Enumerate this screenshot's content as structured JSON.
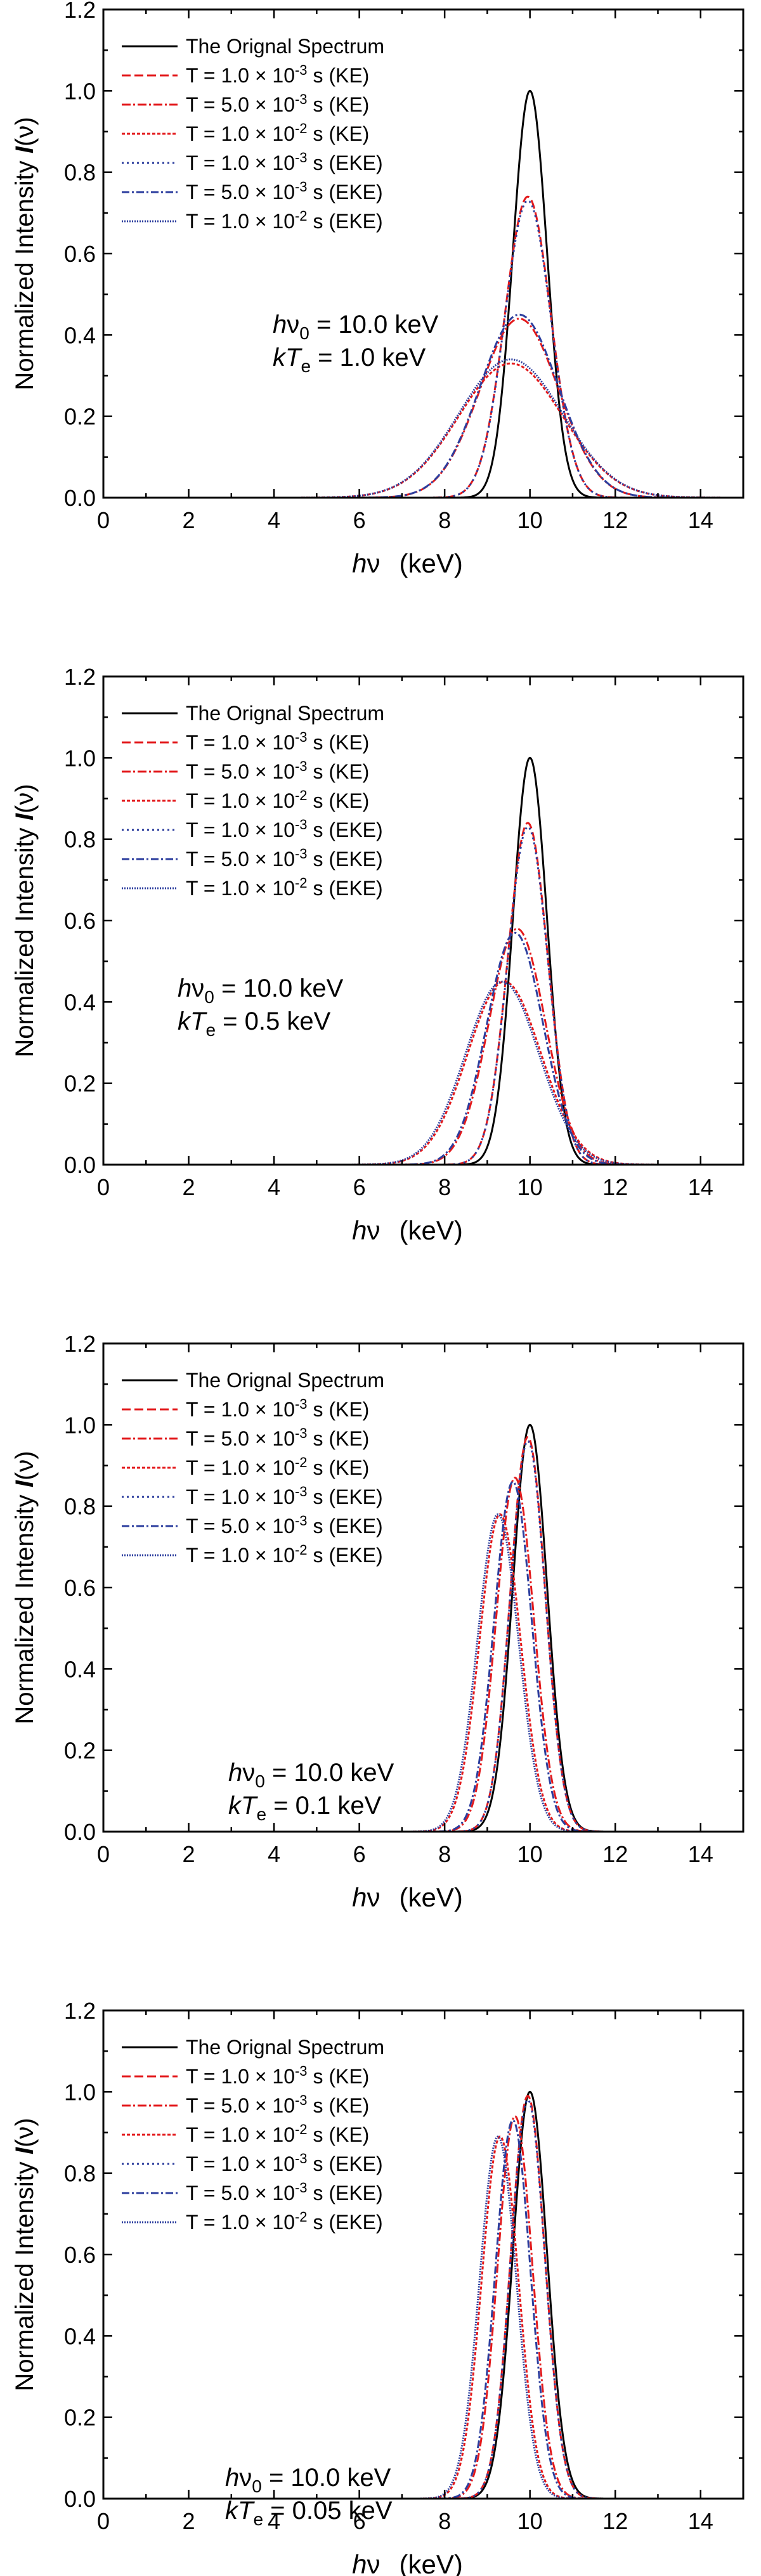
{
  "chart_data": [
    {
      "type": "line",
      "annotation": {
        "prefix1": "h",
        "nu": "ν",
        "sub1": "0",
        "value1": " = 10.0 keV",
        "prefix2": "kT",
        "sub2": "e",
        "value2": " = 1.0 keV"
      },
      "center": 10.0,
      "kTe": 1.0,
      "xlabel": {
        "h": "h",
        "nu": "ν",
        "unit": "(keV)"
      },
      "ylabel": {
        "text": "Normalized Intensity ",
        "I": "I",
        "nu": "(ν)"
      },
      "xlim": [
        0,
        15
      ],
      "ylim": [
        0,
        1.2
      ],
      "xticks": [
        "0",
        "2",
        "4",
        "6",
        "8",
        "10",
        "12",
        "14"
      ],
      "yticks": [
        "0.0",
        "0.2",
        "0.4",
        "0.6",
        "0.8",
        "1.0",
        "1.2"
      ],
      "series": [
        {
          "name": "The Orignal Spectrum",
          "peak_x": 10.0,
          "peak_y": 1.0,
          "sigma": 0.4,
          "color": "#000000",
          "dash": ""
        },
        {
          "name": "T = 1.0 × 10^-3 s (KE)",
          "peak_x": 9.95,
          "peak_y": 0.74,
          "sigma": 0.54,
          "color": "#e31a1c",
          "dash": "14,6"
        },
        {
          "name": "T = 5.0 × 10^-3 s (KE)",
          "peak_x": 9.75,
          "peak_y": 0.44,
          "sigma": 0.92,
          "color": "#e31a1c",
          "dash": "14,4,3,4"
        },
        {
          "name": "T = 1.0 × 10^-2 s (KE)",
          "peak_x": 9.55,
          "peak_y": 0.33,
          "sigma": 1.22,
          "color": "#e31a1c",
          "dash": "5,3"
        },
        {
          "name": "T = 1.0 × 10^-3 s (EKE)",
          "peak_x": 9.95,
          "peak_y": 0.73,
          "sigma": 0.54,
          "color": "#2c3e9e",
          "dash": "3,5"
        },
        {
          "name": "T = 5.0 × 10^-3 s (EKE)",
          "peak_x": 9.75,
          "peak_y": 0.45,
          "sigma": 0.92,
          "color": "#2c3e9e",
          "dash": "12,4,3,4"
        },
        {
          "name": "T = 1.0 × 10^-2 s (EKE)",
          "peak_x": 9.55,
          "peak_y": 0.34,
          "sigma": 1.22,
          "color": "#2c3e9e",
          "dash": "2,2"
        }
      ]
    },
    {
      "type": "line",
      "annotation": {
        "prefix1": "h",
        "nu": "ν",
        "sub1": "0",
        "value1": " = 10.0 keV",
        "prefix2": "kT",
        "sub2": "e",
        "value2": " = 0.5 keV"
      },
      "center": 10.0,
      "kTe": 0.5,
      "xlabel": {
        "h": "h",
        "nu": "ν",
        "unit": "(keV)"
      },
      "ylabel": {
        "text": "Normalized Intensity ",
        "I": "I",
        "nu": "(ν)"
      },
      "xlim": [
        0,
        15
      ],
      "ylim": [
        0,
        1.2
      ],
      "xticks": [
        "0",
        "2",
        "4",
        "6",
        "8",
        "10",
        "12",
        "14"
      ],
      "yticks": [
        "0.0",
        "0.2",
        "0.4",
        "0.6",
        "0.8",
        "1.0",
        "1.2"
      ],
      "series": [
        {
          "name": "The Orignal Spectrum",
          "peak_x": 10.0,
          "peak_y": 1.0,
          "sigma": 0.4,
          "color": "#000000",
          "dash": ""
        },
        {
          "name": "T = 1.0 × 10^-3 s (KE)",
          "peak_x": 9.95,
          "peak_y": 0.84,
          "sigma": 0.47,
          "color": "#e31a1c",
          "dash": "14,6"
        },
        {
          "name": "T = 5.0 × 10^-3 s (KE)",
          "peak_x": 9.7,
          "peak_y": 0.58,
          "sigma": 0.66,
          "color": "#e31a1c",
          "dash": "14,4,3,4"
        },
        {
          "name": "T = 1.0 × 10^-2 s (KE)",
          "peak_x": 9.4,
          "peak_y": 0.45,
          "sigma": 0.86,
          "color": "#e31a1c",
          "dash": "5,3"
        },
        {
          "name": "T = 1.0 × 10^-3 s (EKE)",
          "peak_x": 9.95,
          "peak_y": 0.83,
          "sigma": 0.47,
          "color": "#2c3e9e",
          "dash": "3,5"
        },
        {
          "name": "T = 5.0 × 10^-3 s (EKE)",
          "peak_x": 9.65,
          "peak_y": 0.57,
          "sigma": 0.66,
          "color": "#2c3e9e",
          "dash": "12,4,3,4"
        },
        {
          "name": "T = 1.0 × 10^-2 s (EKE)",
          "peak_x": 9.35,
          "peak_y": 0.45,
          "sigma": 0.86,
          "color": "#2c3e9e",
          "dash": "2,2"
        }
      ]
    },
    {
      "type": "line",
      "annotation": {
        "prefix1": "h",
        "nu": "ν",
        "sub1": "0",
        "value1": " = 10.0 keV",
        "prefix2": "kT",
        "sub2": "e",
        "value2": " = 0.1 keV"
      },
      "center": 10.0,
      "kTe": 0.1,
      "xlabel": {
        "h": "h",
        "nu": "ν",
        "unit": "(keV)"
      },
      "ylabel": {
        "text": "Normalized Intensity ",
        "I": "I",
        "nu": "(ν)"
      },
      "xlim": [
        0,
        15
      ],
      "ylim": [
        0,
        1.2
      ],
      "xticks": [
        "0",
        "2",
        "4",
        "6",
        "8",
        "10",
        "12",
        "14"
      ],
      "yticks": [
        "0.0",
        "0.2",
        "0.4",
        "0.6",
        "0.8",
        "1.0",
        "1.2"
      ],
      "series": [
        {
          "name": "The Orignal Spectrum",
          "peak_x": 10.0,
          "peak_y": 1.0,
          "sigma": 0.4,
          "color": "#000000",
          "dash": ""
        },
        {
          "name": "T = 1.0 × 10^-3 s (KE)",
          "peak_x": 9.95,
          "peak_y": 0.97,
          "sigma": 0.41,
          "color": "#e31a1c",
          "dash": "14,6"
        },
        {
          "name": "T = 5.0 × 10^-3 s (KE)",
          "peak_x": 9.65,
          "peak_y": 0.87,
          "sigma": 0.44,
          "color": "#e31a1c",
          "dash": "14,4,3,4"
        },
        {
          "name": "T = 1.0 × 10^-2 s (KE)",
          "peak_x": 9.3,
          "peak_y": 0.78,
          "sigma": 0.48,
          "color": "#e31a1c",
          "dash": "5,3"
        },
        {
          "name": "T = 1.0 × 10^-3 s (EKE)",
          "peak_x": 9.95,
          "peak_y": 0.96,
          "sigma": 0.41,
          "color": "#2c3e9e",
          "dash": "3,5"
        },
        {
          "name": "T = 5.0 × 10^-3 s (EKE)",
          "peak_x": 9.6,
          "peak_y": 0.86,
          "sigma": 0.44,
          "color": "#2c3e9e",
          "dash": "12,4,3,4"
        },
        {
          "name": "T = 1.0 × 10^-2 s (EKE)",
          "peak_x": 9.25,
          "peak_y": 0.78,
          "sigma": 0.48,
          "color": "#2c3e9e",
          "dash": "2,2"
        }
      ]
    },
    {
      "type": "line",
      "annotation": {
        "prefix1": "h",
        "nu": "ν",
        "sub1": "0",
        "value1": " = 10.0 keV",
        "prefix2": "kT",
        "sub2": "e",
        "value2": " = 0.05 keV"
      },
      "center": 10.0,
      "kTe": 0.05,
      "xlabel": {
        "h": "h",
        "nu": "ν",
        "unit": "(keV)"
      },
      "ylabel": {
        "text": "Normalized Intensity ",
        "I": "I",
        "nu": "(ν)"
      },
      "xlim": [
        0,
        15
      ],
      "ylim": [
        0,
        1.2
      ],
      "xticks": [
        "0",
        "2",
        "4",
        "6",
        "8",
        "10",
        "12",
        "14"
      ],
      "yticks": [
        "0.0",
        "0.2",
        "0.4",
        "0.6",
        "0.8",
        "1.0",
        "1.2"
      ],
      "series": [
        {
          "name": "The Orignal Spectrum",
          "peak_x": 10.0,
          "peak_y": 1.0,
          "sigma": 0.4,
          "color": "#000000",
          "dash": ""
        },
        {
          "name": "T = 1.0 × 10^-3 s (KE)",
          "peak_x": 9.95,
          "peak_y": 0.99,
          "sigma": 0.4,
          "color": "#e31a1c",
          "dash": "14,6"
        },
        {
          "name": "T = 5.0 × 10^-3 s (KE)",
          "peak_x": 9.65,
          "peak_y": 0.94,
          "sigma": 0.41,
          "color": "#e31a1c",
          "dash": "14,4,3,4"
        },
        {
          "name": "T = 1.0 × 10^-2 s (KE)",
          "peak_x": 9.3,
          "peak_y": 0.89,
          "sigma": 0.43,
          "color": "#e31a1c",
          "dash": "5,3"
        },
        {
          "name": "T = 1.0 × 10^-3 s (EKE)",
          "peak_x": 9.95,
          "peak_y": 0.98,
          "sigma": 0.4,
          "color": "#2c3e9e",
          "dash": "3,5"
        },
        {
          "name": "T = 5.0 × 10^-3 s (EKE)",
          "peak_x": 9.6,
          "peak_y": 0.93,
          "sigma": 0.41,
          "color": "#2c3e9e",
          "dash": "12,4,3,4"
        },
        {
          "name": "T = 1.0 × 10^-2 s (EKE)",
          "peak_x": 9.25,
          "peak_y": 0.89,
          "sigma": 0.43,
          "color": "#2c3e9e",
          "dash": "2,2"
        }
      ]
    }
  ]
}
